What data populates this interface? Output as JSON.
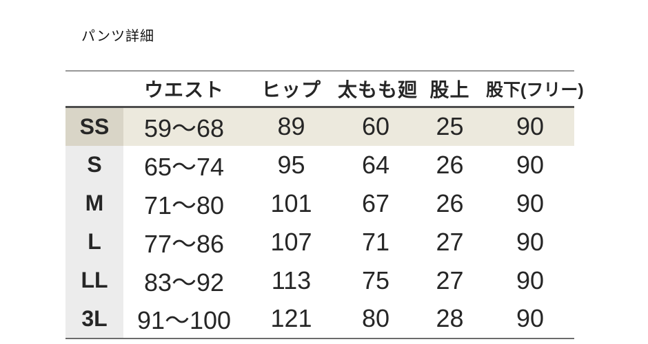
{
  "page": {
    "title": "パンツ詳細"
  },
  "table": {
    "columns": {
      "size": "",
      "waist": "ウエスト",
      "hip": "ヒップ",
      "thigh": "太もも廻",
      "rise": "股上",
      "inseam": "股下(フリー)"
    },
    "rows": [
      {
        "size": "SS",
        "values": [
          "59〜68",
          "89",
          "60",
          "25",
          "90"
        ],
        "highlighted": true
      },
      {
        "size": "S",
        "values": [
          "65〜74",
          "95",
          "64",
          "26",
          "90"
        ],
        "highlighted": false
      },
      {
        "size": "M",
        "values": [
          "71〜80",
          "101",
          "67",
          "26",
          "90"
        ],
        "highlighted": false
      },
      {
        "size": "L",
        "values": [
          "77〜86",
          "107",
          "71",
          "27",
          "90"
        ],
        "highlighted": false
      },
      {
        "size": "LL",
        "values": [
          "83〜92",
          "113",
          "75",
          "27",
          "90"
        ],
        "highlighted": false
      },
      {
        "size": "3L",
        "values": [
          "91〜100",
          "121",
          "80",
          "28",
          "90"
        ],
        "highlighted": false
      }
    ]
  },
  "colors": {
    "page-bg": "#ffffff",
    "title-color": "#111111",
    "header-text": "#262626",
    "value-text": "#262626",
    "ss-row-bg": "#ece9dd",
    "ss-label-bg": "#d9d5c7",
    "label-bg": "#ececec",
    "top-rule": "#979797",
    "header-rule": "#4d4d4d",
    "bottom-rule": "#6b6b6b"
  }
}
